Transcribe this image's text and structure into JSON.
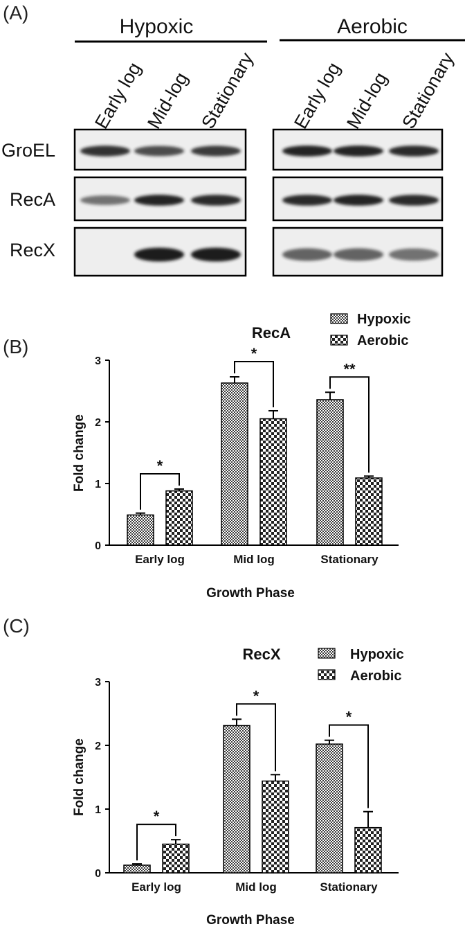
{
  "panels": {
    "a": "(A)",
    "b": "(B)",
    "c": "(C)"
  },
  "blot": {
    "conditions": [
      "Hypoxic",
      "Aerobic"
    ],
    "lanes": [
      "Early log",
      "Mid-log",
      "Stationary"
    ],
    "proteins": [
      "GroEL",
      "RecA",
      "RecX"
    ],
    "band_intensity": {
      "GroEL": {
        "Hypoxic": [
          0.85,
          0.7,
          0.8
        ],
        "Aerobic": [
          0.95,
          0.95,
          0.9
        ]
      },
      "RecA": {
        "Hypoxic": [
          0.45,
          0.95,
          0.9
        ],
        "Aerobic": [
          0.9,
          0.95,
          0.9
        ]
      },
      "RecX": {
        "Hypoxic": [
          0.0,
          1.0,
          1.0
        ],
        "Aerobic": [
          0.55,
          0.55,
          0.45
        ]
      }
    }
  },
  "chart_data": [
    {
      "type": "bar",
      "title": "RecA",
      "xlabel": "Growth Phase",
      "ylabel": "Fold change",
      "categories": [
        "Early log",
        "Mid log",
        "Stationary"
      ],
      "ylim": [
        0,
        3
      ],
      "yticks": [
        "0",
        "1",
        "2",
        "3"
      ],
      "legend_position": "top-right",
      "series": [
        {
          "name": "Hypoxic",
          "values": [
            0.49,
            2.63,
            2.36
          ],
          "errors": [
            0.03,
            0.1,
            0.12
          ]
        },
        {
          "name": "Aerobic",
          "values": [
            0.88,
            2.05,
            1.09
          ],
          "errors": [
            0.03,
            0.13,
            0.03
          ]
        }
      ],
      "significance": [
        "*",
        "*",
        "**"
      ]
    },
    {
      "type": "bar",
      "title": "RecX",
      "xlabel": "Growth Phase",
      "ylabel": "Fold change",
      "categories": [
        "Early log",
        "Mid log",
        "Stationary"
      ],
      "ylim": [
        0,
        3
      ],
      "yticks": [
        "0",
        "1",
        "2",
        "3"
      ],
      "legend_position": "top-right",
      "series": [
        {
          "name": "Hypoxic",
          "values": [
            0.12,
            2.31,
            2.02
          ],
          "errors": [
            0.02,
            0.1,
            0.06
          ]
        },
        {
          "name": "Aerobic",
          "values": [
            0.45,
            1.44,
            0.71
          ],
          "errors": [
            0.07,
            0.1,
            0.25
          ]
        }
      ],
      "significance": [
        "*",
        "*",
        "*"
      ]
    }
  ],
  "colors": {
    "bar_pattern_ink": "#333333",
    "bar_fill": "#ffffff",
    "blot_background": "#eeeeee",
    "band": "#1a1a1a"
  }
}
